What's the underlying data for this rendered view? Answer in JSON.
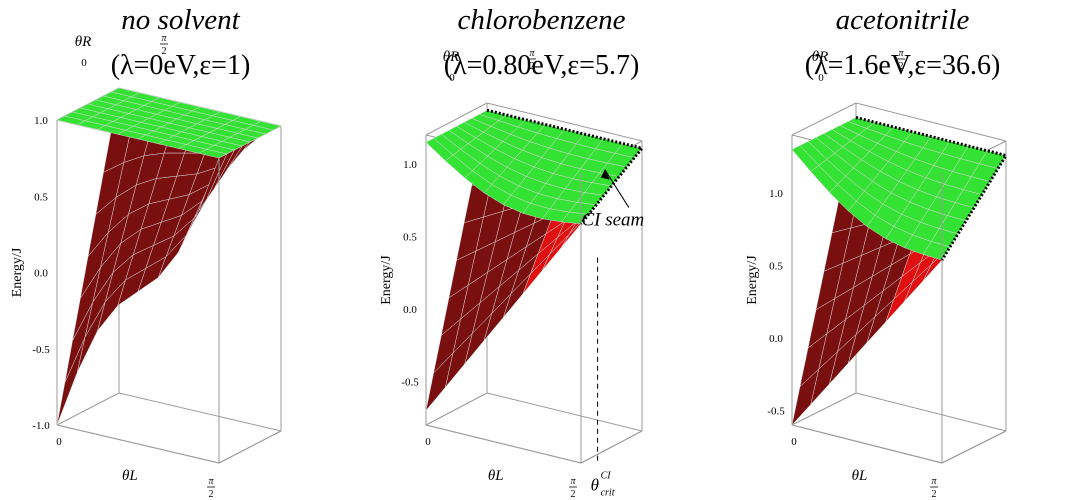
{
  "chart_data": [
    {
      "type": "surface",
      "title": "no solvent",
      "params": "(λ=0eV,ε=1)",
      "xlabel": "θL",
      "ylabel": "θR",
      "zlabel": "Energy/J",
      "x_ticks": [
        "0",
        "π/2"
      ],
      "y_ticks": [
        "0",
        "π/2"
      ],
      "z_ticks": [
        "1.0",
        "0.5",
        "0.0",
        "-0.5",
        "-1.0"
      ],
      "z_range": [
        -1.0,
        1.0
      ],
      "surfaces": [
        {
          "color": "#e00000",
          "z_corners": {
            "origin": -1.0,
            "xmax": 1.0,
            "ymax": 1.0,
            "far": 1.0
          }
        },
        {
          "color": "#33e233",
          "z_corners": {
            "origin": 1.0,
            "xmax": 1.0,
            "ymax": 1.0,
            "far": 1.0
          }
        }
      ]
    },
    {
      "type": "surface",
      "title": "chlorobenzene",
      "params": "(λ=0.80eV,ε=5.7)",
      "xlabel": "θL",
      "ylabel": "θR",
      "zlabel": "Energy/J",
      "x_ticks": [
        "0",
        "π/2"
      ],
      "y_ticks": [
        "0",
        "π/2"
      ],
      "z_ticks": [
        "1.0",
        "0.5",
        "0.0",
        "-0.5"
      ],
      "z_range": [
        -0.8,
        1.2
      ],
      "annotations": [
        "CI seam",
        "θcrit^CI"
      ],
      "annotation_parts": {
        "seam": "CI seam",
        "theta": "θ",
        "theta_sup": "CI",
        "theta_sub": "crit"
      },
      "surfaces": [
        {
          "color": "#e00000",
          "z_corners": {
            "origin": -0.7,
            "xmax": 0.85,
            "ymax": 1.15,
            "far": 1.15
          }
        },
        {
          "color": "#33e233",
          "z_corners": {
            "origin": 1.15,
            "xmax": 0.85,
            "ymax": 1.15,
            "far": 1.15
          }
        }
      ]
    },
    {
      "type": "surface",
      "title": "acetonitrile",
      "params": "(λ=1.6eV,ε=36.6)",
      "xlabel": "θL",
      "ylabel": "θR",
      "zlabel": "Energy/J",
      "x_ticks": [
        "0",
        "π/2"
      ],
      "y_ticks": [
        "0",
        "π/2"
      ],
      "z_ticks": [
        "1.0",
        "0.5",
        "0.0",
        "-0.5"
      ],
      "z_range": [
        -0.6,
        1.4
      ],
      "surfaces": [
        {
          "color": "#e00000",
          "z_corners": {
            "origin": -0.6,
            "xmax": 0.8,
            "ymax": 1.3,
            "far": 1.3
          }
        },
        {
          "color": "#33e233",
          "z_corners": {
            "origin": 1.3,
            "xmax": 0.8,
            "ymax": 1.3,
            "far": 1.3
          }
        }
      ]
    }
  ]
}
